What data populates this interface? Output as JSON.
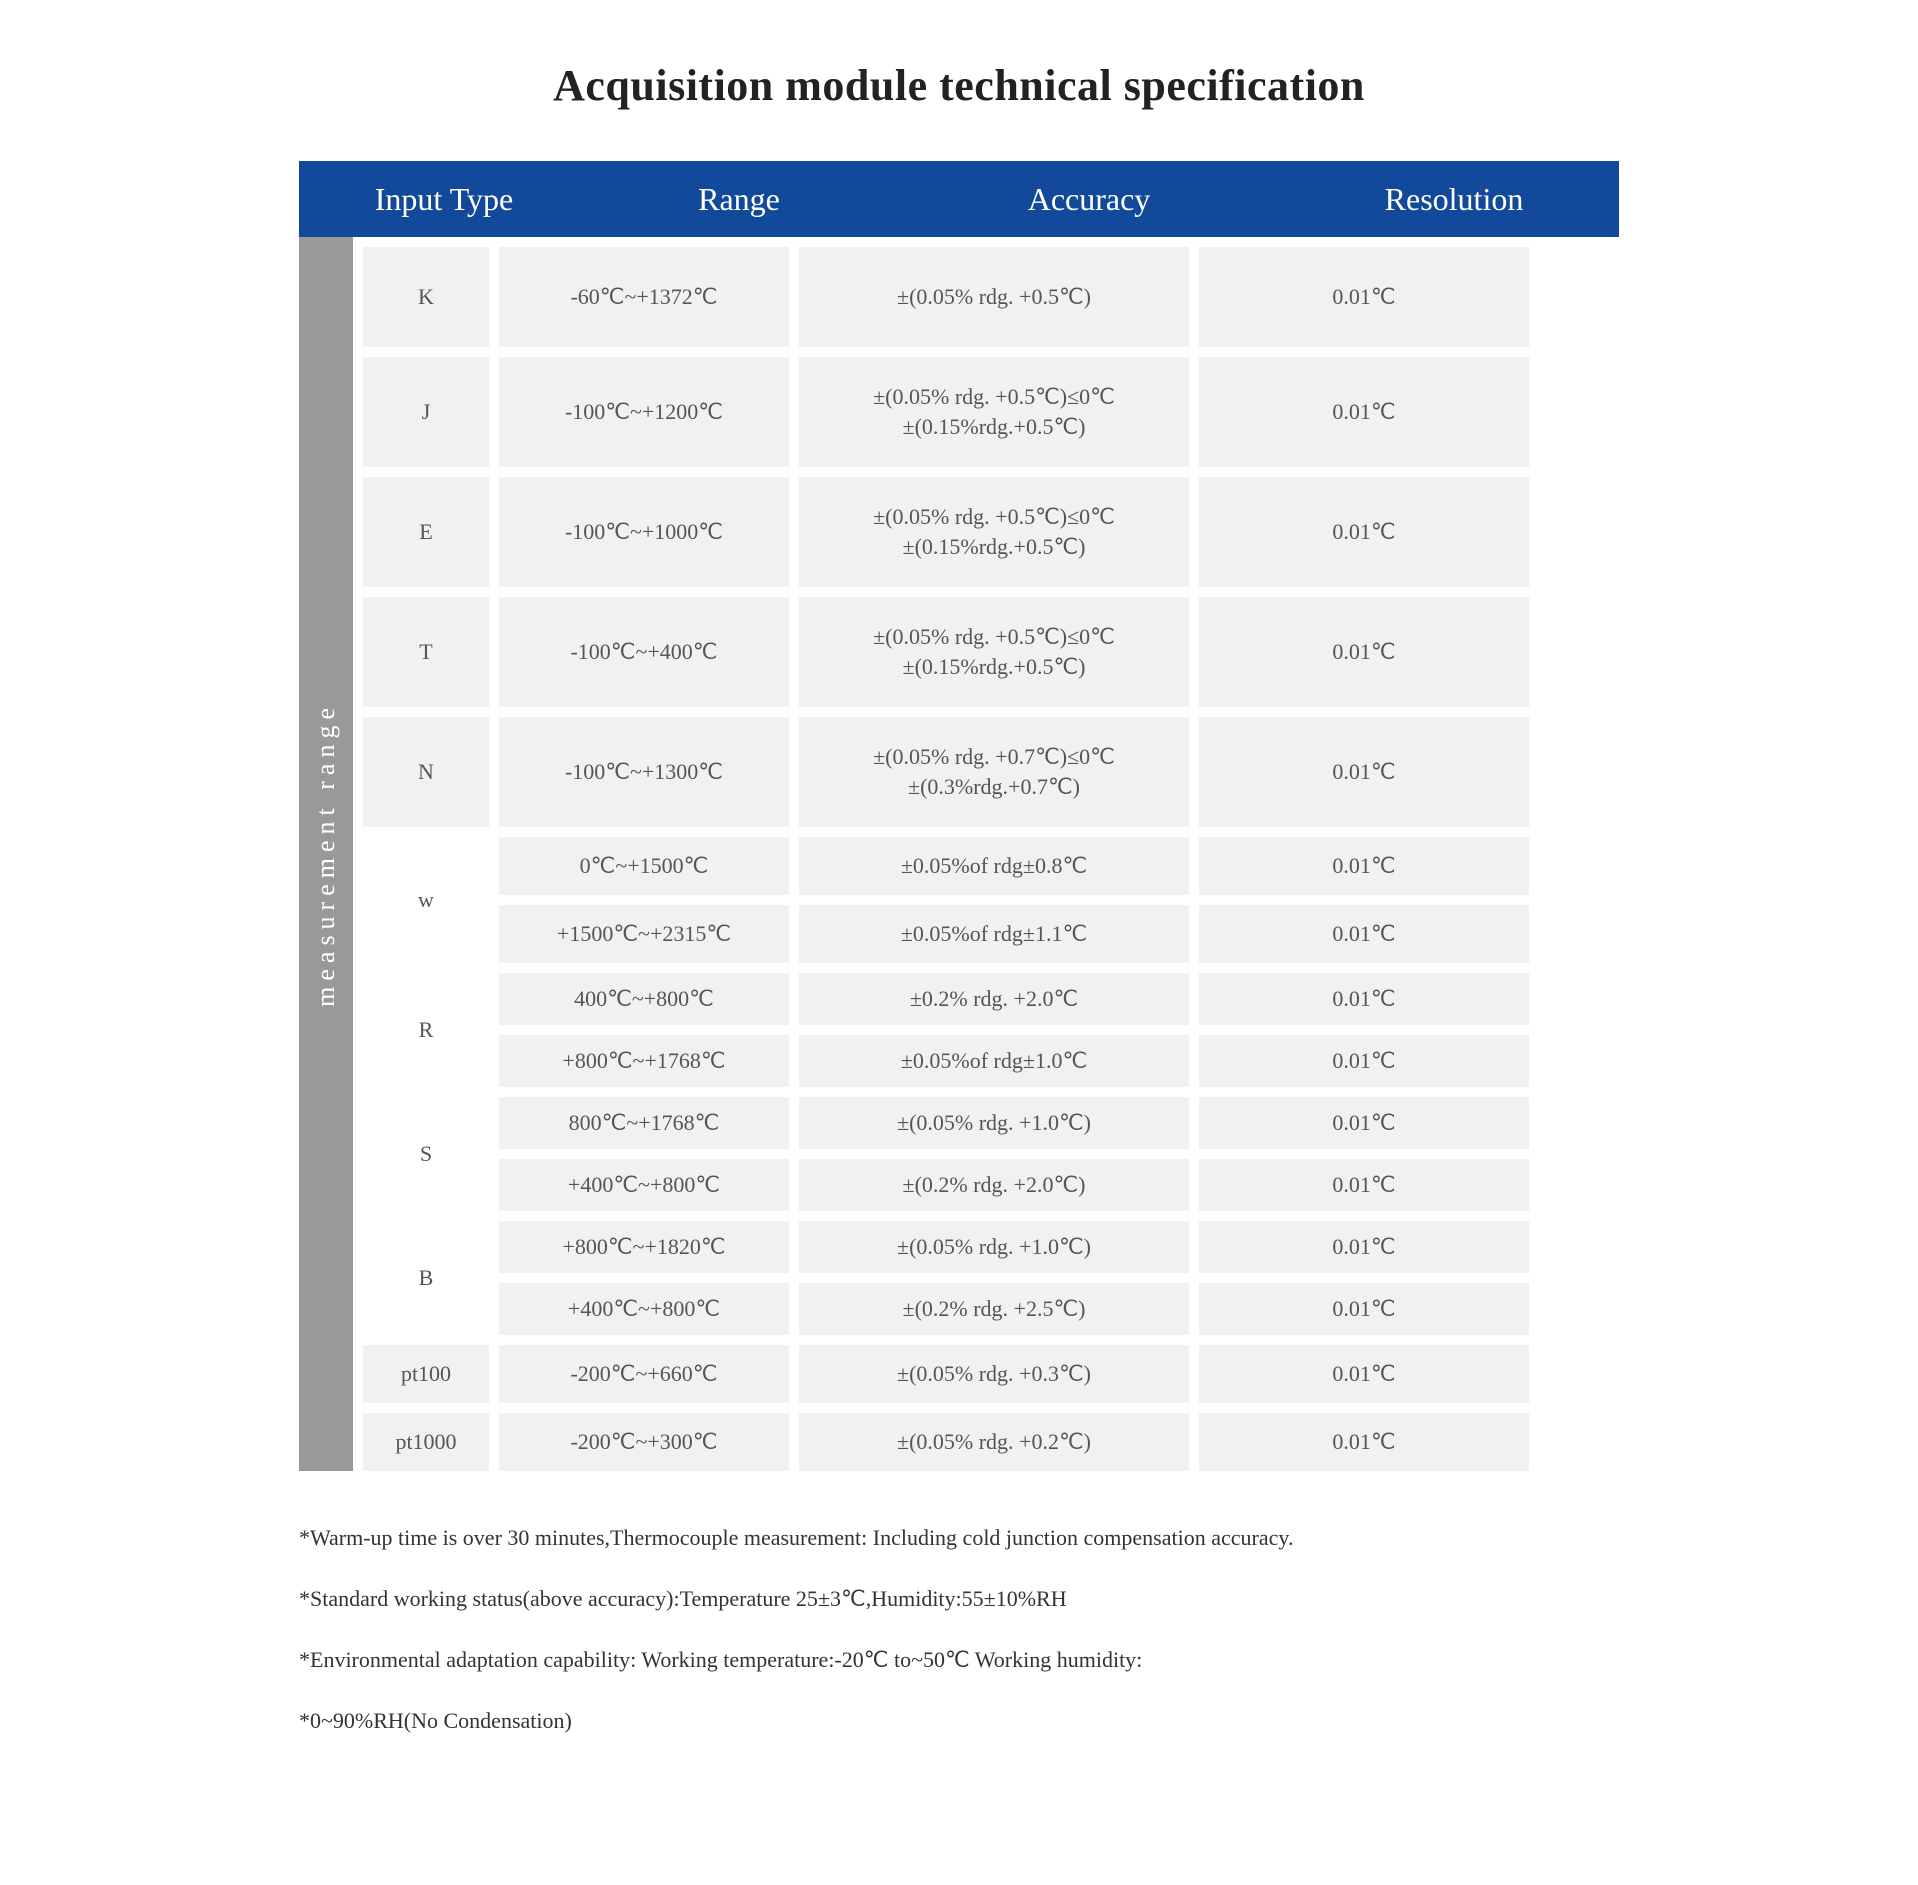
{
  "title": "Acquisition module technical specification",
  "header": {
    "input_type": "Input Type",
    "range": "Range",
    "accuracy": "Accuracy",
    "resolution": "Resolution"
  },
  "side_label": "measurement range",
  "colors": {
    "header_bg": "#13499a",
    "header_fg": "#ffffff",
    "side_bg": "#999999",
    "cell_bg": "#f1f1f1",
    "cell_fg": "#555555",
    "page_bg": "#ffffff"
  },
  "rows": {
    "k": {
      "type": "K",
      "range": "-60℃~+1372℃",
      "accuracy": "±(0.05% rdg. +0.5℃)",
      "resolution": "0.01℃"
    },
    "j": {
      "type": "J",
      "range": "-100℃~+1200℃",
      "accuracy": "±(0.05% rdg. +0.5℃)≤0℃\n±(0.15%rdg.+0.5℃)",
      "resolution": "0.01℃"
    },
    "e": {
      "type": "E",
      "range": "-100℃~+1000℃",
      "accuracy": "±(0.05% rdg. +0.5℃)≤0℃\n±(0.15%rdg.+0.5℃)",
      "resolution": "0.01℃"
    },
    "t": {
      "type": "T",
      "range": "-100℃~+400℃",
      "accuracy": "±(0.05% rdg. +0.5℃)≤0℃\n±(0.15%rdg.+0.5℃)",
      "resolution": "0.01℃"
    },
    "n": {
      "type": "N",
      "range": "-100℃~+1300℃",
      "accuracy": "±(0.05% rdg. +0.7℃)≤0℃\n±(0.3%rdg.+0.7℃)",
      "resolution": "0.01℃"
    },
    "w": {
      "type": "w",
      "sub": [
        {
          "range": "0℃~+1500℃",
          "accuracy": "±0.05%of rdg±0.8℃",
          "resolution": "0.01℃"
        },
        {
          "range": "+1500℃~+2315℃",
          "accuracy": "±0.05%of rdg±1.1℃",
          "resolution": "0.01℃"
        }
      ]
    },
    "r": {
      "type": "R",
      "sub": [
        {
          "range": "400℃~+800℃",
          "accuracy": "±0.2% rdg. +2.0℃",
          "resolution": "0.01℃"
        },
        {
          "range": "+800℃~+1768℃",
          "accuracy": "±0.05%of rdg±1.0℃",
          "resolution": "0.01℃"
        }
      ]
    },
    "s": {
      "type": "S",
      "sub": [
        {
          "range": "800℃~+1768℃",
          "accuracy": "±(0.05% rdg. +1.0℃)",
          "resolution": "0.01℃"
        },
        {
          "range": "+400℃~+800℃",
          "accuracy": "±(0.2% rdg. +2.0℃)",
          "resolution": "0.01℃"
        }
      ]
    },
    "b": {
      "type": "B",
      "sub": [
        {
          "range": "+800℃~+1820℃",
          "accuracy": "±(0.05% rdg. +1.0℃)",
          "resolution": "0.01℃"
        },
        {
          "range": "+400℃~+800℃",
          "accuracy": "±(0.2% rdg. +2.5℃)",
          "resolution": "0.01℃"
        }
      ]
    },
    "pt100": {
      "type": "pt100",
      "range": "-200℃~+660℃",
      "accuracy": "±(0.05% rdg. +0.3℃)",
      "resolution": "0.01℃"
    },
    "pt1000": {
      "type": "pt1000",
      "range": "-200℃~+300℃",
      "accuracy": "±(0.05% rdg. +0.2℃)",
      "resolution": "0.01℃"
    }
  },
  "footnotes": [
    "*Warm-up time is over 30 minutes,Thermocouple measurement: Including cold junction compensation accuracy.",
    "*Standard working status(above accuracy):Temperature  25±3℃,Humidity:55±10%RH",
    "*Environmental adaptation capability: Working temperature:-20℃ to~50℃ Working humidity:",
    "*0~90%RH(No Condensation)"
  ]
}
